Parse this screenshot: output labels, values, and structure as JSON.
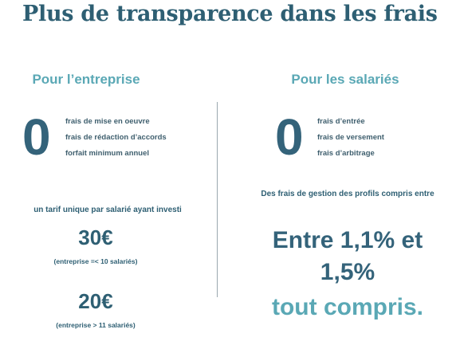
{
  "title": "Plus de transparence dans les frais",
  "columns": [
    {
      "heading": "Pour l’entreprise",
      "big_number": "0",
      "fees": [
        "frais de mise en oeuvre",
        "frais de rédaction d’accords",
        "forfait minimum annuel"
      ],
      "text": "un tarif unique par salarié ayant investi",
      "prices": [
        {
          "amount": "30€",
          "note": "(entreprise =< 10 salariés)"
        },
        {
          "amount": "20€",
          "note": "(entreprise > 11 salariés)"
        }
      ]
    },
    {
      "heading": "Pour les salariés",
      "big_number": "0",
      "fees": [
        "frais d’entrée",
        "frais de versement",
        "frais d’arbitrage"
      ],
      "text": "Des frais de gestion des profils compris entre",
      "range_lines": [
        "Entre 1,1% et",
        "1,5%"
      ],
      "emphasis": "tout compris."
    }
  ]
}
